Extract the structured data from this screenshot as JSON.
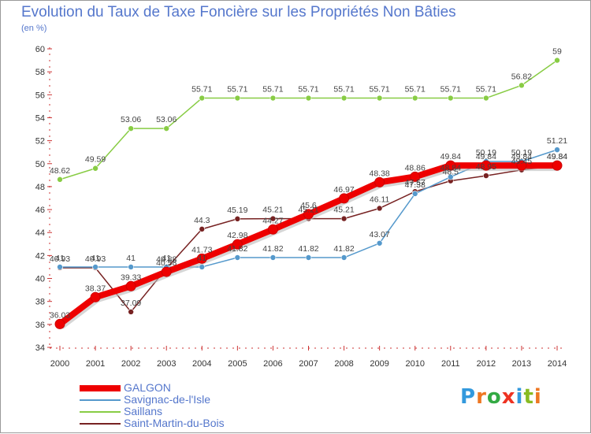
{
  "header": {
    "title": "Evolution du Taux de Taxe Foncière sur les Propriétés Non Bâties",
    "unit": "(en %)"
  },
  "logo": {
    "text": "Proxiti"
  },
  "chart_data": {
    "type": "line",
    "title": "Evolution du Taux de Taxe Foncière sur les Propriétés Non Bâties",
    "ylabel": "(en %)",
    "xlabel": "",
    "x": [
      "2000",
      "2001",
      "2002",
      "2003",
      "2004",
      "2005",
      "2006",
      "2007",
      "2008",
      "2009",
      "2010",
      "2011",
      "2012",
      "2013",
      "2014"
    ],
    "ylim": [
      34,
      60
    ],
    "yticks": [
      34,
      36,
      38,
      40,
      42,
      44,
      46,
      48,
      50,
      52,
      54,
      56,
      58,
      60
    ],
    "grid": false,
    "legend": "bottom-left",
    "series": [
      {
        "name": "GALGON",
        "color": "#ee0000",
        "values": [
          36.03,
          38.37,
          39.33,
          40.58,
          41.73,
          42.98,
          44.27,
          45.6,
          46.97,
          48.38,
          48.86,
          49.84,
          49.84,
          49.84,
          49.84
        ]
      },
      {
        "name": "Savignac-de-l'Isle",
        "color": "#5599cc",
        "values": [
          41,
          41,
          41,
          41,
          41,
          41.82,
          41.82,
          41.82,
          41.82,
          43.07,
          47.38,
          48.84,
          50.19,
          50.19,
          51.21
        ]
      },
      {
        "name": "Saillans",
        "color": "#88cc44",
        "values": [
          48.62,
          49.59,
          53.06,
          53.06,
          55.71,
          55.71,
          55.71,
          55.71,
          55.71,
          55.71,
          55.71,
          55.71,
          55.71,
          56.82,
          59
        ]
      },
      {
        "name": "Saint-Martin-du-Bois",
        "color": "#772222",
        "values": [
          40.93,
          40.93,
          37.09,
          40.88,
          44.3,
          45.19,
          45.21,
          45.21,
          45.21,
          46.11,
          47.57,
          48.5,
          48.95,
          49.45,
          49.84
        ]
      }
    ]
  }
}
